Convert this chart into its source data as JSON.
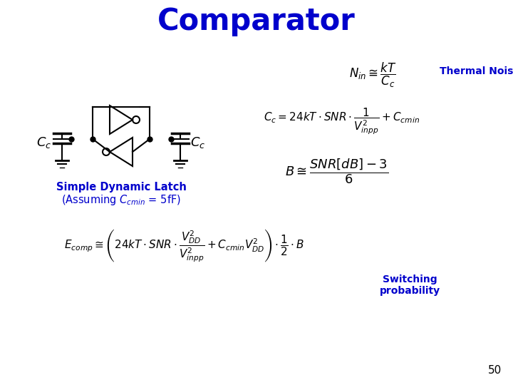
{
  "title": "Comparator",
  "title_color": "#0000CC",
  "title_fontsize": 30,
  "bg_color": "#ffffff",
  "thermal_noise_label": "Thermal Noise",
  "thermal_noise_color": "#0000CC",
  "simple_latch_label": "Simple Dynamic Latch",
  "latch_label_color": "#0000CC",
  "switching_label": "Switching\nprobability",
  "switching_color": "#0000CC",
  "page_number": "50",
  "formula_color": "#000000",
  "circuit_color": "#000000"
}
